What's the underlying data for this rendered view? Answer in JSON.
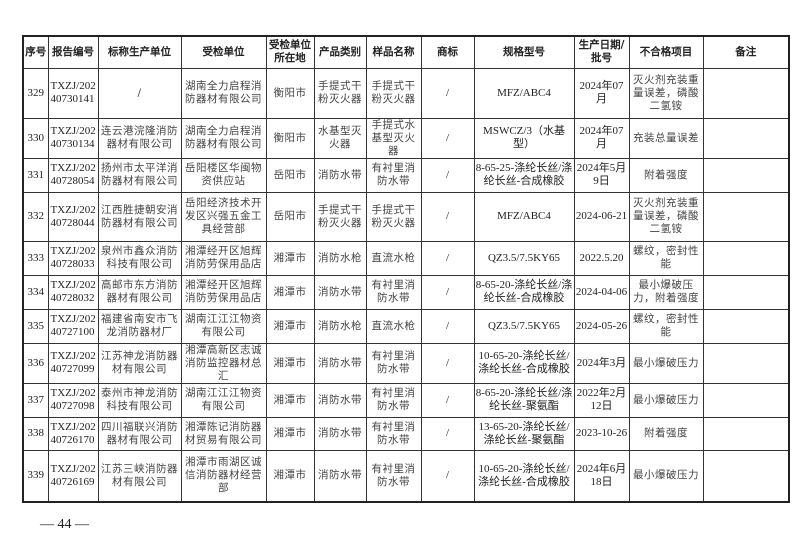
{
  "table": {
    "headers": [
      "序号",
      "报告编号",
      "标称生产单位",
      "受检单位",
      "受检单位所在地",
      "产品类别",
      "样品名称",
      "商标",
      "规格型号",
      "生产日期/批号",
      "不合格项目",
      "备注"
    ],
    "rows": [
      [
        "329",
        "TXZJ/20240730141",
        "/",
        "湖南全力启程消防器材有限公司",
        "衡阳市",
        "手提式干粉灭火器",
        "手提式干粉灭火器",
        "/",
        "MFZ/ABC4",
        "2024年07月",
        "灭火剂充装重量误差，磷酸二氢铵",
        ""
      ],
      [
        "330",
        "TXZJ/20240730134",
        "连云港浣隆消防器材有限公司",
        "湖南全力启程消防器材有限公司",
        "衡阳市",
        "水基型灭火器",
        "手提式水基型灭火器",
        "/",
        "MSWCZ/3（水基型）",
        "2024年07月",
        "充装总量误差",
        ""
      ],
      [
        "331",
        "TXZJ/20240728054",
        "扬州市太平洋消防器材有限公司",
        "岳阳楼区华闽物资供应站",
        "岳阳市",
        "消防水带",
        "有衬里消防水带",
        "/",
        "8-65-25-涤纶长丝/涤纶长丝-合成橡胶",
        "2024年5月9日",
        "附着强度",
        ""
      ],
      [
        "332",
        "TXZJ/20240728044",
        "江西胜捷朝安消防器材有限公司",
        "岳阳经济技术开发区兴强五金工具经营部",
        "岳阳市",
        "手提式干粉灭火器",
        "手提式干粉灭火器",
        "/",
        "MFZ/ABC4",
        "2024-06-21",
        "灭火剂充装重量误差，磷酸二氢铵",
        ""
      ],
      [
        "333",
        "TXZJ/20240728033",
        "泉州市鑫众消防科技有限公司",
        "湘潭经开区旭辉消防劳保用品店",
        "湘潭市",
        "消防水枪",
        "直流水枪",
        "/",
        "QZ3.5/7.5KY65",
        "2022.5.20",
        "螺纹，密封性能",
        ""
      ],
      [
        "334",
        "TXZJ/20240728032",
        "高邮市东方消防器材有限公司",
        "湘潭经开区旭辉消防劳保用品店",
        "湘潭市",
        "消防水带",
        "有衬里消防水带",
        "/",
        "8-65-20-涤纶长丝/涤纶长丝-合成橡胶",
        "2024-04-06",
        "最小爆破压力，附着强度",
        ""
      ],
      [
        "335",
        "TXZJ/20240727100",
        "福建省南安市飞龙消防器材厂",
        "湖南江江江物资有限公司",
        "湘潭市",
        "消防水枪",
        "直流水枪",
        "/",
        "QZ3.5/7.5KY65",
        "2024-05-26",
        "螺纹，密封性能",
        ""
      ],
      [
        "336",
        "TXZJ/20240727099",
        "江苏神龙消防器材有限公司",
        "湘潭高新区志诚消防监控器材总汇",
        "湘潭市",
        "消防水带",
        "有衬里消防水带",
        "/",
        "10-65-20-涤纶长丝/涤纶长丝-合成橡胶",
        "2024年3月",
        "最小爆破压力",
        ""
      ],
      [
        "337",
        "TXZJ/20240727098",
        "泰州市神龙消防科技有限公司",
        "湖南江江江物资有限公司",
        "湘潭市",
        "消防水带",
        "有衬里消防水带",
        "/",
        "8-65-20-涤纶长丝/涤纶长丝-聚氨酯",
        "2022年2月12日",
        "最小爆破压力",
        ""
      ],
      [
        "338",
        "TXZJ/20240726170",
        "四川福联兴消防器材有限公司",
        "湘潭陈记消防器材贸易有限公司",
        "湘潭市",
        "消防水带",
        "有衬里消防水带",
        "/",
        "13-65-20-涤纶长丝/涤纶长丝-聚氨酯",
        "2023-10-26",
        "附着强度",
        ""
      ],
      [
        "339",
        "TXZJ/20240726169",
        "江苏三峡消防器材有限公司",
        "湘潭市雨湖区诚信消防器材经营部",
        "湘潭市",
        "消防水带",
        "有衬里消防水带",
        "/",
        "10-65-20-涤纶长丝/涤纶长丝-合成橡胶",
        "2024年6月18日",
        "最小爆破压力",
        ""
      ]
    ]
  },
  "footer": {
    "page_number": "— 44 —"
  }
}
